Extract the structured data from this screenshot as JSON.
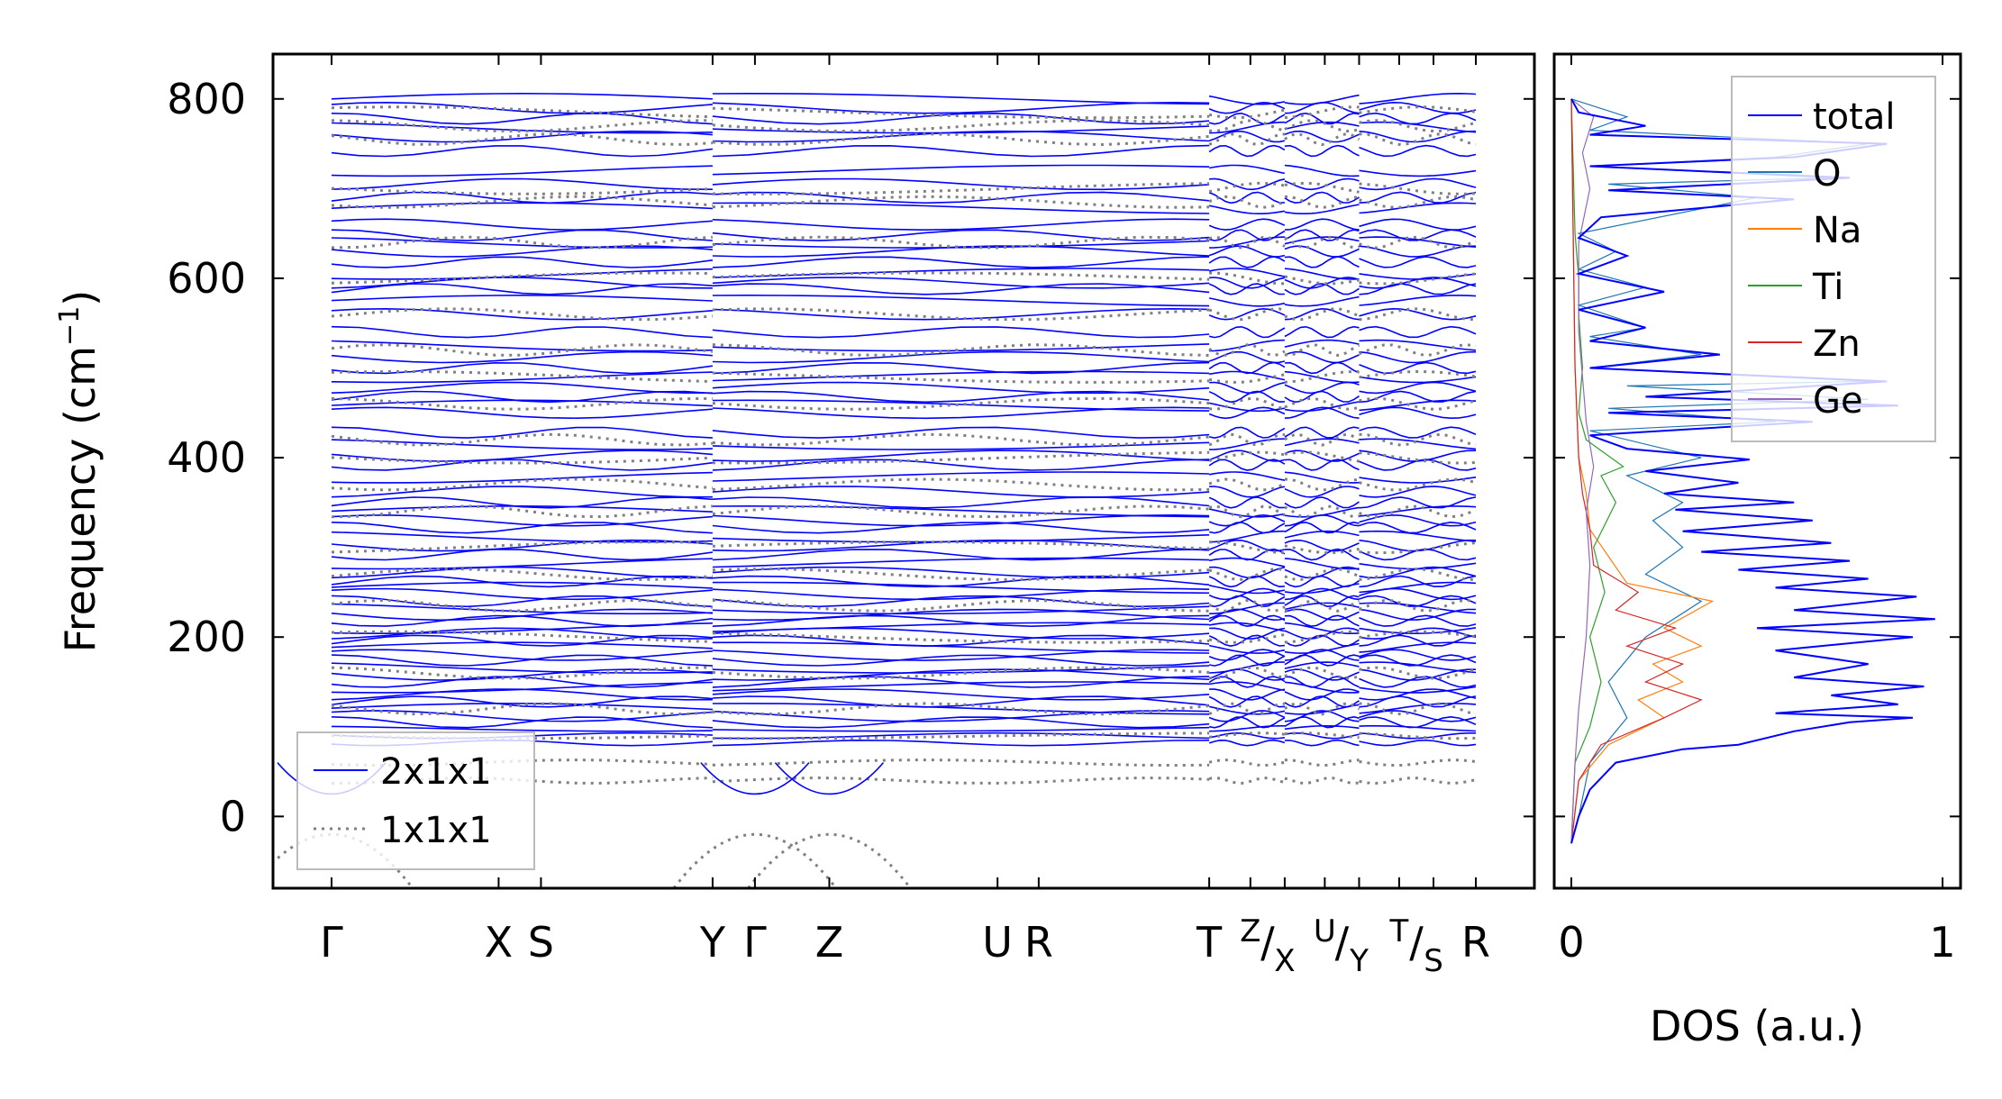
{
  "chart_data": [
    {
      "type": "line",
      "panel": "band-structure",
      "ylabel": "Frequency (cm",
      "ylabel_sup": "−1",
      "ylabel_end": ")",
      "ylim": [
        -80,
        850
      ],
      "yticks": [
        0,
        200,
        400,
        600,
        800
      ],
      "x_ticks": [
        {
          "label": "Γ",
          "pos": 0.0
        },
        {
          "label": "X",
          "pos": 0.146
        },
        {
          "label": "S",
          "pos": 0.183
        },
        {
          "label": "Y",
          "pos": 0.333
        },
        {
          "label": "Γ",
          "pos": 0.37
        },
        {
          "label": "Z",
          "pos": 0.435
        },
        {
          "label": "U",
          "pos": 0.582
        },
        {
          "label": "R",
          "pos": 0.618
        },
        {
          "label": "T",
          "pos": 0.767
        },
        {
          "label": "Z",
          "pos": 0.803,
          "sup": true
        },
        {
          "label": "/",
          "pos": 0.818
        },
        {
          "label": "X",
          "pos": 0.833,
          "sub": true
        },
        {
          "label": "U",
          "pos": 0.868,
          "sup": true
        },
        {
          "label": "/",
          "pos": 0.883
        },
        {
          "label": "Y",
          "pos": 0.898,
          "sub": true
        },
        {
          "label": "T",
          "pos": 0.933,
          "sup": true
        },
        {
          "label": "/",
          "pos": 0.948
        },
        {
          "label": "S",
          "pos": 0.963,
          "sub": true
        },
        {
          "label": "R",
          "pos": 1.0
        }
      ],
      "segment_breaks": [
        0.333,
        0.767,
        0.833,
        0.898
      ],
      "series": [
        {
          "name": "2x1x1",
          "color": "#0000ff",
          "style": "solid",
          "flat_mode_frequencies": [
            800,
            790,
            778,
            768,
            758,
            742,
            720,
            705,
            690,
            678,
            660,
            648,
            640,
            630,
            618,
            605,
            595,
            588,
            575,
            560,
            540,
            525,
            512,
            500,
            490,
            478,
            468,
            458,
            450,
            428,
            415,
            402,
            392,
            378,
            362,
            350,
            340,
            330,
            322,
            312,
            302,
            292,
            282,
            272,
            262,
            255,
            248,
            240,
            232,
            225,
            218,
            210,
            204,
            196,
            188,
            180,
            174,
            166,
            158,
            150,
            144,
            136,
            128,
            120,
            112,
            105,
            98,
            90,
            82
          ]
        },
        {
          "name": "1x1x1",
          "color": "#808080",
          "style": "dotted",
          "flat_mode_frequencies": [
            785,
            770,
            755,
            700,
            685,
            640,
            600,
            560,
            520,
            490,
            460,
            420,
            400,
            370,
            340,
            300,
            270,
            235,
            200,
            160,
            120,
            90,
            60,
            40
          ]
        }
      ],
      "legend": {
        "position": "lower-left",
        "entries": [
          "2x1x1",
          "1x1x1"
        ]
      }
    },
    {
      "type": "line",
      "panel": "dos",
      "xlabel": "DOS (a.u.)",
      "xlim": [
        0,
        1
      ],
      "xticks": [
        "0",
        "1"
      ],
      "ylim": [
        -80,
        850
      ],
      "legend": {
        "position": "top-right",
        "entries": [
          "total",
          "O",
          "Na",
          "Ti",
          "Zn",
          "Ge"
        ]
      },
      "series": [
        {
          "name": "total",
          "color": "#0000ff",
          "points": [
            [
              0,
              -30
            ],
            [
              0.02,
              0
            ],
            [
              0.05,
              30
            ],
            [
              0.12,
              60
            ],
            [
              0.3,
              75
            ],
            [
              0.45,
              80
            ],
            [
              0.6,
              95
            ],
            [
              0.75,
              105
            ],
            [
              0.92,
              110
            ],
            [
              0.55,
              115
            ],
            [
              0.88,
              125
            ],
            [
              0.7,
              135
            ],
            [
              0.95,
              145
            ],
            [
              0.6,
              155
            ],
            [
              0.8,
              170
            ],
            [
              0.55,
              185
            ],
            [
              0.92,
              200
            ],
            [
              0.5,
              210
            ],
            [
              0.98,
              220
            ],
            [
              0.6,
              230
            ],
            [
              0.93,
              245
            ],
            [
              0.55,
              255
            ],
            [
              0.8,
              265
            ],
            [
              0.45,
              275
            ],
            [
              0.75,
              285
            ],
            [
              0.35,
              295
            ],
            [
              0.7,
              305
            ],
            [
              0.3,
              318
            ],
            [
              0.65,
              330
            ],
            [
              0.28,
              342
            ],
            [
              0.6,
              350
            ],
            [
              0.25,
              360
            ],
            [
              0.45,
              372
            ],
            [
              0.2,
              385
            ],
            [
              0.48,
              398
            ],
            [
              0.15,
              410
            ],
            [
              0.05,
              425
            ],
            [
              0.65,
              440
            ],
            [
              0.1,
              450
            ],
            [
              0.88,
              458
            ],
            [
              0.2,
              468
            ],
            [
              0.85,
              485
            ],
            [
              0.05,
              500
            ],
            [
              0.4,
              515
            ],
            [
              0.05,
              530
            ],
            [
              0.2,
              545
            ],
            [
              0.02,
              565
            ],
            [
              0.25,
              585
            ],
            [
              0.02,
              605
            ],
            [
              0.15,
              625
            ],
            [
              0.02,
              645
            ],
            [
              0.08,
              668
            ],
            [
              0.6,
              688
            ],
            [
              0.1,
              698
            ],
            [
              0.75,
              712
            ],
            [
              0.05,
              725
            ],
            [
              0.6,
              735
            ],
            [
              0.85,
              750
            ],
            [
              0.05,
              760
            ],
            [
              0.2,
              770
            ],
            [
              0.02,
              785
            ],
            [
              0,
              800
            ]
          ]
        },
        {
          "name": "O",
          "color": "#1f77b4",
          "points": [
            [
              0,
              -30
            ],
            [
              0.02,
              0
            ],
            [
              0.05,
              60
            ],
            [
              0.15,
              110
            ],
            [
              0.1,
              150
            ],
            [
              0.2,
              200
            ],
            [
              0.35,
              240
            ],
            [
              0.2,
              270
            ],
            [
              0.3,
              300
            ],
            [
              0.22,
              330
            ],
            [
              0.3,
              350
            ],
            [
              0.15,
              380
            ],
            [
              0.35,
              400
            ],
            [
              0.05,
              430
            ],
            [
              0.55,
              440
            ],
            [
              0.1,
              455
            ],
            [
              0.8,
              465
            ],
            [
              0.15,
              480
            ],
            [
              0.8,
              485
            ],
            [
              0.05,
              500
            ],
            [
              0.35,
              515
            ],
            [
              0.05,
              535
            ],
            [
              0.2,
              545
            ],
            [
              0.02,
              570
            ],
            [
              0.2,
              590
            ],
            [
              0.02,
              610
            ],
            [
              0.12,
              630
            ],
            [
              0.02,
              650
            ],
            [
              0.5,
              690
            ],
            [
              0.1,
              705
            ],
            [
              0.7,
              712
            ],
            [
              0.05,
              725
            ],
            [
              0.55,
              735
            ],
            [
              0.8,
              750
            ],
            [
              0.05,
              765
            ],
            [
              0.15,
              780
            ],
            [
              0,
              800
            ]
          ]
        },
        {
          "name": "Na",
          "color": "#ff7f0e",
          "points": [
            [
              0,
              -30
            ],
            [
              0.02,
              40
            ],
            [
              0.1,
              80
            ],
            [
              0.25,
              110
            ],
            [
              0.18,
              130
            ],
            [
              0.3,
              150
            ],
            [
              0.22,
              170
            ],
            [
              0.35,
              190
            ],
            [
              0.25,
              210
            ],
            [
              0.38,
              240
            ],
            [
              0.15,
              260
            ],
            [
              0.1,
              290
            ],
            [
              0.05,
              320
            ],
            [
              0.04,
              360
            ],
            [
              0.02,
              400
            ],
            [
              0.01,
              500
            ],
            [
              0,
              800
            ]
          ]
        },
        {
          "name": "Ti",
          "color": "#2ca02c",
          "points": [
            [
              0,
              -30
            ],
            [
              0.01,
              60
            ],
            [
              0.05,
              100
            ],
            [
              0.08,
              150
            ],
            [
              0.05,
              200
            ],
            [
              0.09,
              250
            ],
            [
              0.06,
              300
            ],
            [
              0.12,
              350
            ],
            [
              0.08,
              380
            ],
            [
              0.14,
              390
            ],
            [
              0.04,
              420
            ],
            [
              0.02,
              450
            ],
            [
              0.03,
              500
            ],
            [
              0.02,
              560
            ],
            [
              0.02,
              600
            ],
            [
              0.01,
              650
            ],
            [
              0,
              800
            ]
          ]
        },
        {
          "name": "Zn",
          "color": "#d62728",
          "points": [
            [
              0,
              -30
            ],
            [
              0.02,
              40
            ],
            [
              0.08,
              80
            ],
            [
              0.25,
              110
            ],
            [
              0.35,
              130
            ],
            [
              0.2,
              150
            ],
            [
              0.3,
              170
            ],
            [
              0.15,
              190
            ],
            [
              0.28,
              210
            ],
            [
              0.12,
              230
            ],
            [
              0.18,
              250
            ],
            [
              0.06,
              280
            ],
            [
              0.05,
              320
            ],
            [
              0.03,
              360
            ],
            [
              0.02,
              400
            ],
            [
              0.01,
              500
            ],
            [
              0,
              800
            ]
          ]
        },
        {
          "name": "Ge",
          "color": "#9467bd",
          "points": [
            [
              0,
              -30
            ],
            [
              0.01,
              60
            ],
            [
              0.02,
              120
            ],
            [
              0.04,
              200
            ],
            [
              0.05,
              280
            ],
            [
              0.04,
              340
            ],
            [
              0.06,
              390
            ],
            [
              0.04,
              440
            ],
            [
              0.03,
              490
            ],
            [
              0.02,
              540
            ],
            [
              0.02,
              590
            ],
            [
              0.02,
              640
            ],
            [
              0.05,
              700
            ],
            [
              0.03,
              740
            ],
            [
              0.06,
              780
            ],
            [
              0,
              800
            ]
          ]
        }
      ]
    }
  ]
}
